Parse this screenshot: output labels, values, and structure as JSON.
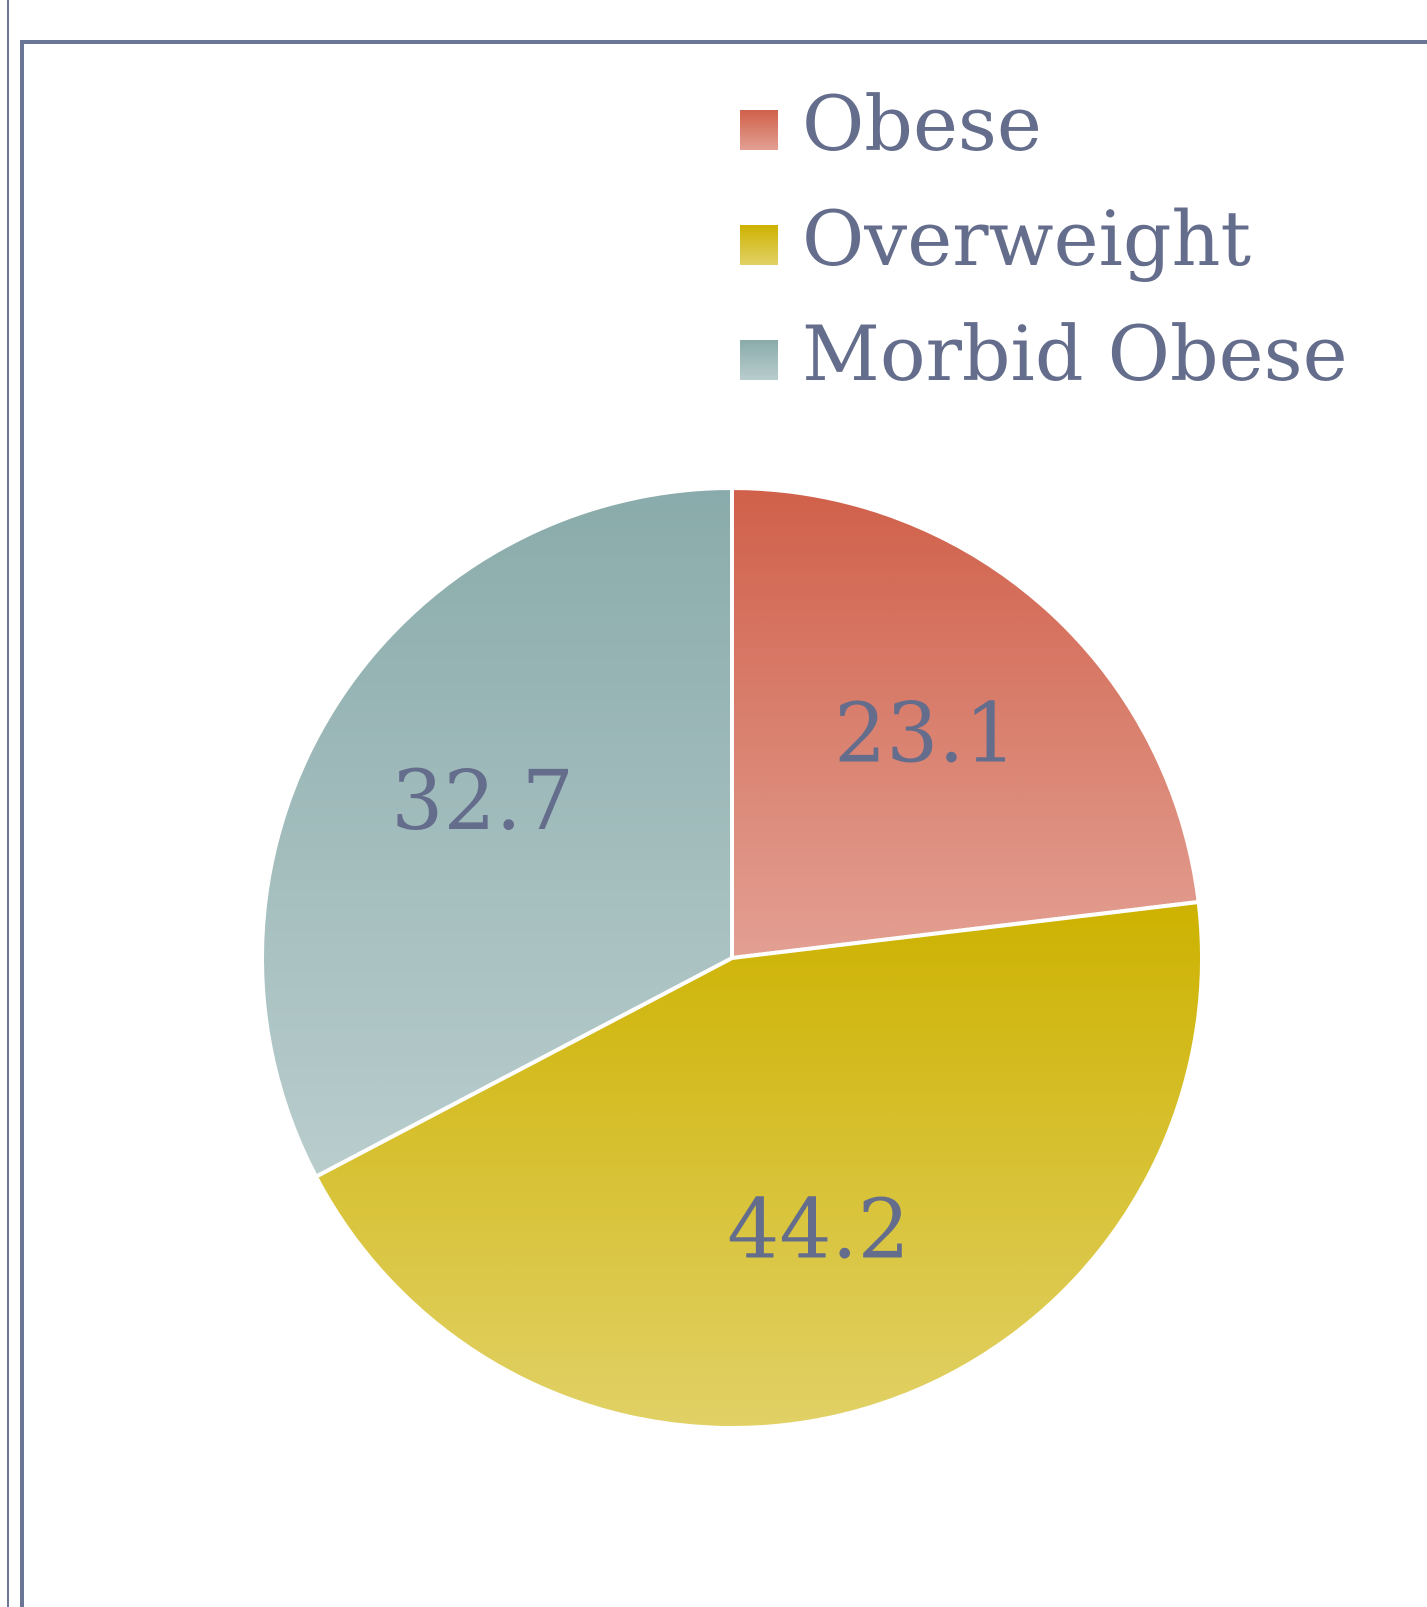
{
  "chart_data": {
    "type": "pie",
    "categories": [
      "Obese",
      "Overweight",
      "Morbid Obese"
    ],
    "values": [
      23.1,
      44.2,
      32.7
    ],
    "colors": [
      "#d0604a",
      "#cdb200",
      "#8aabab"
    ],
    "legend": "top-right"
  }
}
